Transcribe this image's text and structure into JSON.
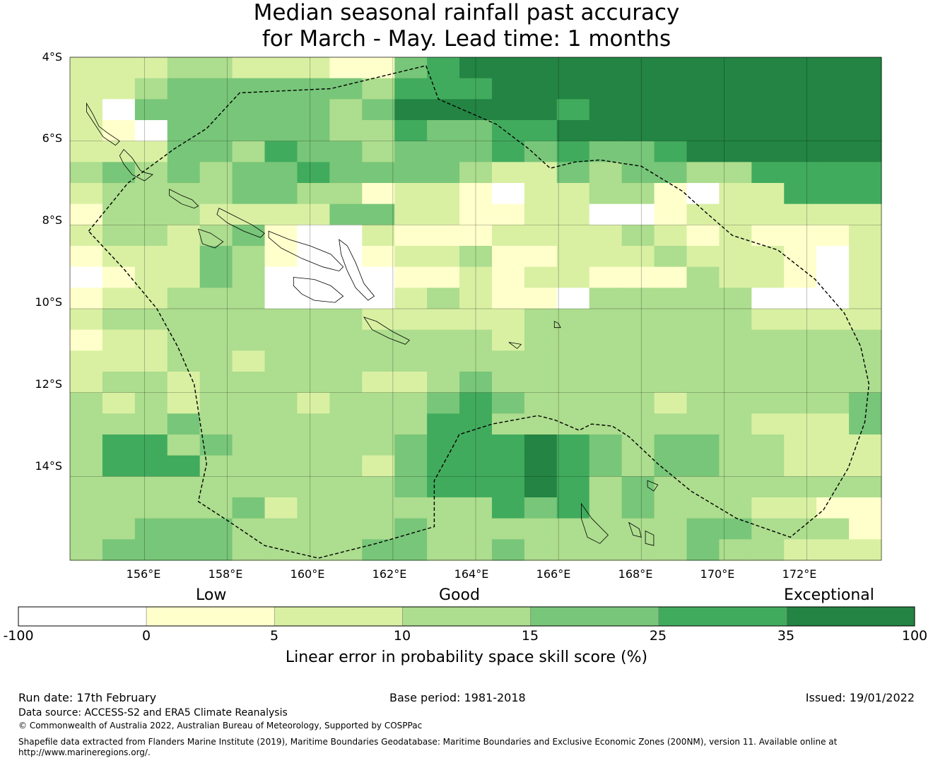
{
  "title": {
    "line1": "Median seasonal rainfall past accuracy",
    "line2": "for March - May. Lead time: 1 months"
  },
  "map": {
    "lon_range": [
      154.2,
      173.8
    ],
    "lat_range": [
      -16.0,
      -4.0
    ],
    "lat_ticks": [
      {
        "value": -4,
        "label": "4°S"
      },
      {
        "value": -6,
        "label": "6°S"
      },
      {
        "value": -8,
        "label": "8°S"
      },
      {
        "value": -10,
        "label": "10°S"
      },
      {
        "value": -12,
        "label": "12°S"
      },
      {
        "value": -14,
        "label": "14°S"
      }
    ],
    "lon_ticks": [
      {
        "value": 156,
        "label": "156°E"
      },
      {
        "value": 158,
        "label": "158°E"
      },
      {
        "value": 160,
        "label": "160°E"
      },
      {
        "value": 162,
        "label": "162°E"
      },
      {
        "value": 164,
        "label": "164°E"
      },
      {
        "value": 166,
        "label": "166°E"
      },
      {
        "value": 168,
        "label": "168°E"
      },
      {
        "value": 170,
        "label": "170°E"
      },
      {
        "value": 172,
        "label": "172°E"
      }
    ],
    "grid_rows": [
      "2223322211456666666666666",
      "2234444443555666666666666",
      "2044444434666665666666666",
      "2104444433544556666666666",
      "2224435443444545445666666",
      "3434344544443224344335555",
      "2333344331221022331022555",
      "1333222244221122001222222",
      "2332341002111222232121112",
      "1222431001223112223222102",
      "0122430000112122111322102",
      "1223330000232110333330002",
      "2333333332222233333332222",
      "1223333333333233333333333",
      "2223323333333333333333333",
      "2332333332234333333333333",
      "3232333233345433332333334",
      "3334333333355333333332224",
      "3553433333455565434433222",
      "3555333332455565434433222",
      "3333333333455565343333333",
      "3333342333333545343332211",
      "3344433333433333333443331",
      "3444433334433433333433222"
    ],
    "boundary_lonlat": [
      [
        154.65,
        -8.15
      ],
      [
        155.6,
        -7.0
      ],
      [
        156.7,
        -6.2
      ],
      [
        157.5,
        -5.7
      ],
      [
        158.3,
        -4.85
      ],
      [
        160.5,
        -4.75
      ],
      [
        162.8,
        -4.2
      ],
      [
        163.1,
        -5.0
      ],
      [
        164.5,
        -5.6
      ],
      [
        165.3,
        -6.2
      ],
      [
        165.8,
        -6.65
      ],
      [
        166.4,
        -6.5
      ],
      [
        167.0,
        -6.45
      ],
      [
        168.0,
        -6.6
      ],
      [
        169.0,
        -7.2
      ],
      [
        169.5,
        -7.65
      ],
      [
        170.2,
        -8.25
      ],
      [
        171.3,
        -8.6
      ],
      [
        172.2,
        -9.3
      ],
      [
        172.9,
        -10.1
      ],
      [
        173.3,
        -10.9
      ],
      [
        173.5,
        -11.8
      ],
      [
        173.4,
        -12.7
      ],
      [
        173.0,
        -13.8
      ],
      [
        172.4,
        -14.8
      ],
      [
        171.6,
        -15.45
      ],
      [
        170.3,
        -15.0
      ],
      [
        169.2,
        -14.35
      ],
      [
        168.4,
        -13.7
      ],
      [
        167.7,
        -13.05
      ],
      [
        167.3,
        -12.8
      ],
      [
        166.8,
        -12.75
      ],
      [
        166.5,
        -12.9
      ],
      [
        165.9,
        -12.65
      ],
      [
        165.5,
        -12.55
      ],
      [
        164.4,
        -12.75
      ],
      [
        163.6,
        -13.0
      ],
      [
        163.5,
        -13.2
      ],
      [
        163.0,
        -14.1
      ],
      [
        163.0,
        -15.2
      ],
      [
        161.6,
        -15.6
      ],
      [
        160.2,
        -15.95
      ],
      [
        158.9,
        -15.65
      ],
      [
        158.0,
        -15.05
      ],
      [
        157.3,
        -14.6
      ],
      [
        157.5,
        -13.7
      ],
      [
        157.2,
        -11.8
      ],
      [
        156.8,
        -10.9
      ],
      [
        156.3,
        -10.0
      ],
      [
        155.5,
        -9.05
      ],
      [
        154.65,
        -8.15
      ]
    ],
    "islands_lonlat": [
      [
        [
          155.5,
          -6.2
        ],
        [
          155.7,
          -6.4
        ],
        [
          155.9,
          -6.7
        ],
        [
          156.0,
          -6.75
        ],
        [
          156.2,
          -6.8
        ],
        [
          156.0,
          -6.95
        ],
        [
          155.7,
          -6.8
        ],
        [
          155.5,
          -6.55
        ],
        [
          155.4,
          -6.35
        ],
        [
          155.5,
          -6.2
        ]
      ],
      [
        [
          154.6,
          -5.1
        ],
        [
          154.75,
          -5.35
        ],
        [
          154.9,
          -5.65
        ],
        [
          155.1,
          -5.8
        ],
        [
          155.4,
          -6.0
        ],
        [
          155.3,
          -6.1
        ],
        [
          155.0,
          -5.9
        ],
        [
          154.8,
          -5.6
        ],
        [
          154.6,
          -5.3
        ],
        [
          154.6,
          -5.1
        ]
      ],
      [
        [
          156.6,
          -7.15
        ],
        [
          156.9,
          -7.3
        ],
        [
          157.15,
          -7.4
        ],
        [
          157.3,
          -7.55
        ],
        [
          157.2,
          -7.6
        ],
        [
          156.9,
          -7.5
        ],
        [
          156.6,
          -7.3
        ],
        [
          156.6,
          -7.15
        ]
      ],
      [
        [
          157.8,
          -7.6
        ],
        [
          158.2,
          -7.8
        ],
        [
          158.6,
          -8.0
        ],
        [
          158.9,
          -8.2
        ],
        [
          158.8,
          -8.3
        ],
        [
          158.4,
          -8.15
        ],
        [
          158.0,
          -7.95
        ],
        [
          157.75,
          -7.75
        ],
        [
          157.8,
          -7.6
        ]
      ],
      [
        [
          159.0,
          -8.15
        ],
        [
          159.5,
          -8.35
        ],
        [
          160.0,
          -8.5
        ],
        [
          160.5,
          -8.7
        ],
        [
          160.8,
          -9.0
        ],
        [
          160.7,
          -9.1
        ],
        [
          160.3,
          -9.0
        ],
        [
          159.8,
          -8.8
        ],
        [
          159.3,
          -8.55
        ],
        [
          159.0,
          -8.3
        ],
        [
          159.0,
          -8.15
        ]
      ],
      [
        [
          160.7,
          -8.35
        ],
        [
          160.9,
          -8.5
        ],
        [
          161.1,
          -8.9
        ],
        [
          161.3,
          -9.4
        ],
        [
          161.55,
          -9.7
        ],
        [
          161.4,
          -9.8
        ],
        [
          161.1,
          -9.5
        ],
        [
          160.9,
          -9.1
        ],
        [
          160.75,
          -8.7
        ],
        [
          160.7,
          -8.35
        ]
      ],
      [
        [
          159.6,
          -9.25
        ],
        [
          160.1,
          -9.3
        ],
        [
          160.5,
          -9.45
        ],
        [
          160.8,
          -9.7
        ],
        [
          160.6,
          -9.85
        ],
        [
          160.1,
          -9.8
        ],
        [
          159.8,
          -9.65
        ],
        [
          159.6,
          -9.45
        ],
        [
          159.6,
          -9.25
        ]
      ],
      [
        [
          157.3,
          -8.1
        ],
        [
          157.6,
          -8.2
        ],
        [
          157.9,
          -8.4
        ],
        [
          157.7,
          -8.55
        ],
        [
          157.4,
          -8.45
        ],
        [
          157.3,
          -8.1
        ]
      ],
      [
        [
          161.3,
          -10.2
        ],
        [
          161.6,
          -10.3
        ],
        [
          162.0,
          -10.55
        ],
        [
          162.4,
          -10.75
        ],
        [
          162.3,
          -10.85
        ],
        [
          161.9,
          -10.7
        ],
        [
          161.5,
          -10.5
        ],
        [
          161.3,
          -10.2
        ]
      ],
      [
        [
          166.55,
          -14.65
        ],
        [
          166.8,
          -15.0
        ],
        [
          167.2,
          -15.4
        ],
        [
          167.0,
          -15.6
        ],
        [
          166.7,
          -15.45
        ],
        [
          166.55,
          -15.0
        ],
        [
          166.55,
          -14.65
        ]
      ],
      [
        [
          167.7,
          -15.1
        ],
        [
          167.95,
          -15.25
        ],
        [
          168.0,
          -15.45
        ],
        [
          167.8,
          -15.4
        ],
        [
          167.7,
          -15.1
        ]
      ],
      [
        [
          168.1,
          -15.3
        ],
        [
          168.3,
          -15.4
        ],
        [
          168.3,
          -15.65
        ],
        [
          168.1,
          -15.6
        ],
        [
          168.1,
          -15.3
        ]
      ],
      [
        [
          168.15,
          -14.1
        ],
        [
          168.4,
          -14.2
        ],
        [
          168.3,
          -14.35
        ],
        [
          168.15,
          -14.25
        ],
        [
          168.15,
          -14.1
        ]
      ],
      [
        [
          165.9,
          -10.3
        ],
        [
          166.0,
          -10.35
        ],
        [
          166.05,
          -10.45
        ],
        [
          165.9,
          -10.45
        ],
        [
          165.9,
          -10.3
        ]
      ],
      [
        [
          164.8,
          -10.8
        ],
        [
          165.1,
          -10.85
        ],
        [
          165.0,
          -10.95
        ],
        [
          164.8,
          -10.8
        ]
      ]
    ]
  },
  "colorbar": {
    "labels": {
      "low": "Low",
      "good": "Good",
      "exceptional": "Exceptional"
    },
    "colors": [
      "#ffffff",
      "#ffffcc",
      "#d9f0a3",
      "#addd8e",
      "#78c679",
      "#41ab5d",
      "#238443"
    ],
    "tick_labels": [
      "-100",
      "0",
      "5",
      "10",
      "15",
      "25",
      "35",
      "100"
    ],
    "title": "Linear error in probability space skill score (%)"
  },
  "footer": {
    "run_date": "Run date: 17th February",
    "base_period": "Base period: 1981-2018",
    "issued": "Issued: 19/01/2022",
    "data_source": "Data source: ACCESS-S2 and ERA5 Climate Reanalysis",
    "copyright": "© Commonwealth of Australia 2022, Australian Bureau of Meteorology, Supported by COSPPac",
    "shapefile_line1": "Shapefile data extracted from Flanders Marine Institute (2019), Maritime Boundaries Geodatabase: Maritime Boundaries and Exclusive Economic Zones (200NM), version 11. Available online at",
    "shapefile_line2": "http://www.marineregions.org/."
  }
}
